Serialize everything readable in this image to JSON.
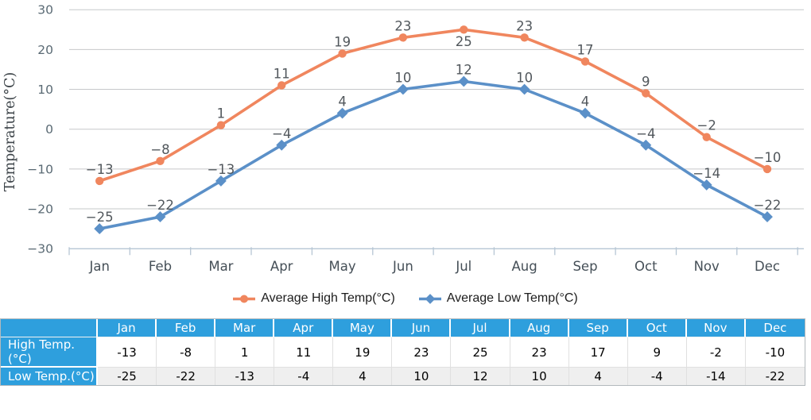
{
  "chart_data": {
    "type": "line",
    "title": "",
    "xlabel": "",
    "ylabel": "Temperature(°C)",
    "ylim": [
      -30,
      30
    ],
    "yticks": [
      30,
      20,
      10,
      0,
      -10,
      -20,
      -30
    ],
    "grid": true,
    "legend_position": "bottom",
    "categories": [
      "Jan",
      "Feb",
      "Mar",
      "Apr",
      "May",
      "Jun",
      "Jul",
      "Aug",
      "Sep",
      "Oct",
      "Nov",
      "Dec"
    ],
    "series": [
      {
        "name": "Average High Temp(°C)",
        "marker": "circle",
        "color": "#F0865E",
        "values": [
          -13,
          -8,
          1,
          11,
          19,
          23,
          25,
          23,
          17,
          9,
          -2,
          -10
        ],
        "labels_below_indices": [
          6
        ]
      },
      {
        "name": "Average Low Temp(°C)",
        "marker": "diamond",
        "color": "#5B90C8",
        "values": [
          -25,
          -22,
          -13,
          -4,
          4,
          10,
          12,
          10,
          4,
          -4,
          -14,
          -22
        ],
        "labels_below_indices": []
      }
    ]
  },
  "table": {
    "corner_label": "",
    "columns": [
      "Jan",
      "Feb",
      "Mar",
      "Apr",
      "May",
      "Jun",
      "Jul",
      "Aug",
      "Sep",
      "Oct",
      "Nov",
      "Dec"
    ],
    "rows": [
      {
        "label": "High Temp.(°C)",
        "values": [
          "-13",
          "-8",
          "1",
          "11",
          "19",
          "23",
          "25",
          "23",
          "17",
          "9",
          "-2",
          "-10"
        ]
      },
      {
        "label": "Low Temp.(°C)",
        "values": [
          "-25",
          "-22",
          "-13",
          "-4",
          "4",
          "10",
          "12",
          "10",
          "4",
          "-4",
          "-14",
          "-22"
        ]
      }
    ]
  },
  "colors": {
    "high_series": "#F0865E",
    "low_series": "#5B90C8",
    "gridline": "#C6C8CA",
    "axis_line": "#B6C6D4",
    "tick_label": "#5A6A74",
    "month_label": "#454F57",
    "data_label": "#51575C",
    "axis_title": "#3E454A",
    "legend_text": "#1D1D1D",
    "table_header_bg": "#2E9FDD",
    "table_row_bg": "#FFFFFF",
    "table_alt_row_bg": "#EFEFEF"
  }
}
